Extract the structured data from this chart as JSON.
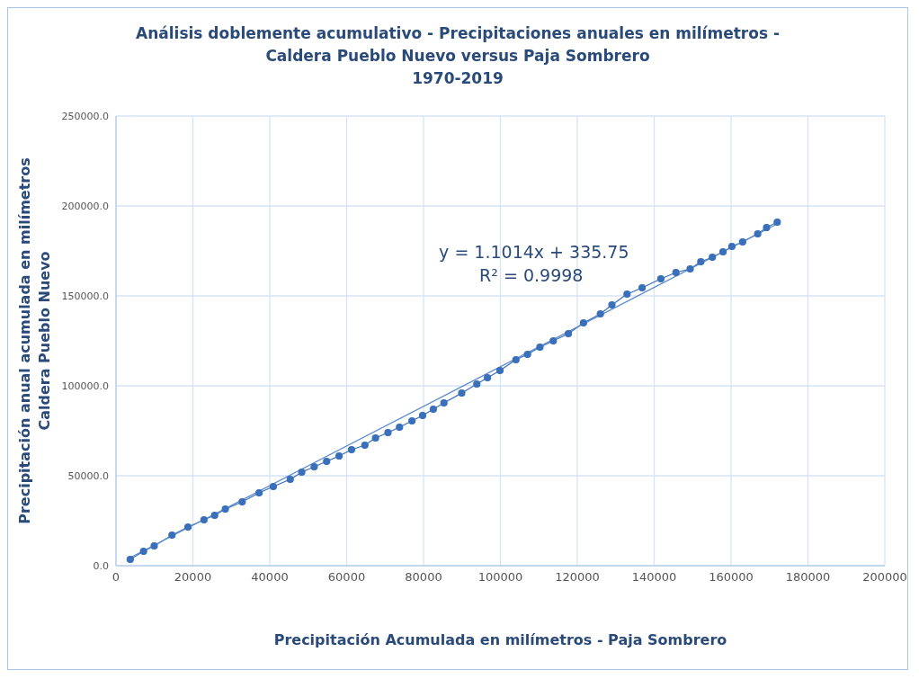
{
  "chart_data": {
    "type": "line",
    "title": "Análisis doblemente acumulativo - Precipitaciones anuales en milímetros -\nCaldera Pueblo Nuevo versus Paja Sombrero\n1970-2019",
    "xlabel": "Precipitación Acumulada en milímetros - Paja Sombrero",
    "ylabel": "Precipitación anual acumulada en milímetros  Caldera Pueblo Nuevo",
    "series": [
      {
        "color": "#3a6fba",
        "marker": "circle",
        "x": [
          3700,
          7170,
          9940,
          14570,
          18730,
          22890,
          25660,
          28440,
          32830,
          37220,
          40920,
          45320,
          48320,
          51560,
          54800,
          58030,
          61270,
          64740,
          67510,
          70750,
          73750,
          76990,
          79760,
          82540,
          85310,
          89940,
          93870,
          96640,
          99880,
          104040,
          107050,
          110280,
          113750,
          117680,
          121610,
          126000,
          129010,
          132940,
          136870,
          141730,
          145660,
          149360,
          152130,
          155140,
          157910,
          160220,
          163000,
          166930,
          169240,
          172010
        ],
        "values": [
          3500,
          8000,
          11000,
          17000,
          21500,
          25500,
          28000,
          31500,
          35500,
          40500,
          44000,
          48000,
          52000,
          55000,
          58000,
          61000,
          64500,
          67000,
          71000,
          74000,
          77000,
          80500,
          83500,
          87000,
          90500,
          96000,
          101000,
          104500,
          108500,
          114500,
          117500,
          121500,
          125000,
          129000,
          135000,
          140000,
          145000,
          151000,
          154500,
          159500,
          163000,
          165000,
          169000,
          171500,
          174500,
          177500,
          180000,
          184500,
          188000,
          191000
        ]
      },
      {
        "color": "#5b8bd0",
        "marker": "none",
        "x": [
          3700,
          172010
        ],
        "values": [
          4500,
          190000
        ]
      }
    ],
    "annotations": [
      "y = 1.1014x + 335.75",
      "R² = 0.9998"
    ],
    "xlim": [
      0,
      200000
    ],
    "xticks": [
      0,
      20000,
      40000,
      60000,
      80000,
      100000,
      120000,
      140000,
      160000,
      180000,
      200000
    ],
    "ylim": [
      0,
      250000
    ],
    "yticks": [
      {
        "value": 0,
        "label": "0.0"
      },
      {
        "value": 50000,
        "label": "50000.0"
      },
      {
        "value": 100000,
        "label": "100000.0"
      },
      {
        "value": 150000,
        "label": "150000.0"
      },
      {
        "value": 200000,
        "label": "200000.0"
      },
      {
        "value": 250000,
        "label": "250000.0"
      }
    ],
    "grid": true
  }
}
